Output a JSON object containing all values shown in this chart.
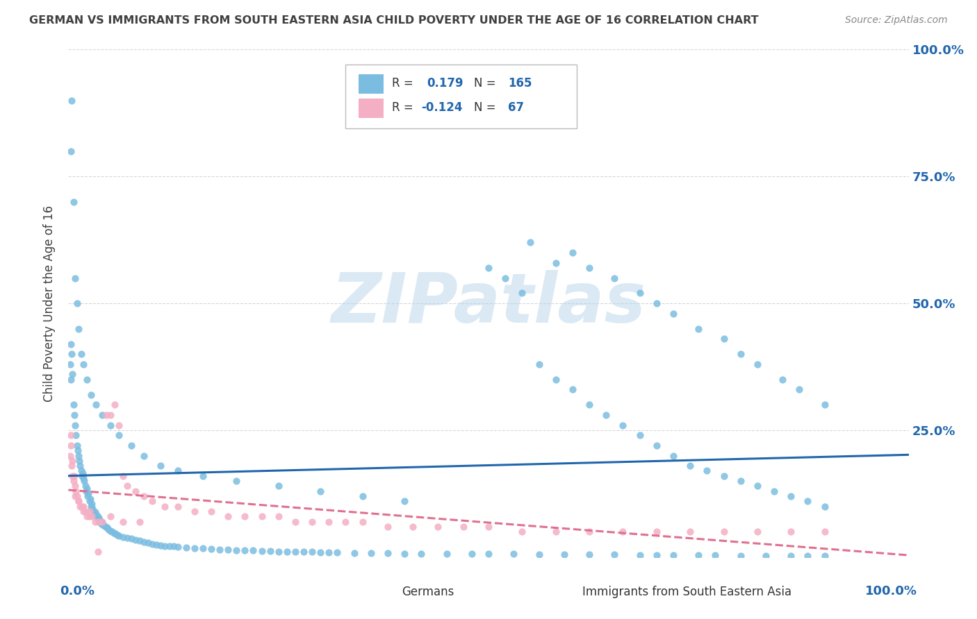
{
  "title": "GERMAN VS IMMIGRANTS FROM SOUTH EASTERN ASIA CHILD POVERTY UNDER THE AGE OF 16 CORRELATION CHART",
  "source": "Source: ZipAtlas.com",
  "ylabel": "Child Poverty Under the Age of 16",
  "blue_color": "#7bbde0",
  "pink_color": "#f4afc4",
  "blue_line_color": "#2166ac",
  "pink_line_color": "#e07090",
  "background_color": "#ffffff",
  "grid_color": "#cccccc",
  "title_color": "#404040",
  "axis_label_color": "#2166ac",
  "blue_scatter_x": [
    0.002,
    0.003,
    0.003,
    0.004,
    0.005,
    0.006,
    0.007,
    0.008,
    0.009,
    0.01,
    0.011,
    0.012,
    0.013,
    0.014,
    0.015,
    0.016,
    0.017,
    0.018,
    0.019,
    0.02,
    0.021,
    0.022,
    0.023,
    0.024,
    0.025,
    0.026,
    0.027,
    0.028,
    0.029,
    0.03,
    0.031,
    0.032,
    0.033,
    0.034,
    0.035,
    0.036,
    0.037,
    0.038,
    0.039,
    0.04,
    0.042,
    0.044,
    0.046,
    0.048,
    0.05,
    0.052,
    0.054,
    0.056,
    0.058,
    0.06,
    0.065,
    0.07,
    0.075,
    0.08,
    0.085,
    0.09,
    0.095,
    0.1,
    0.105,
    0.11,
    0.115,
    0.12,
    0.125,
    0.13,
    0.14,
    0.15,
    0.16,
    0.17,
    0.18,
    0.19,
    0.2,
    0.21,
    0.22,
    0.23,
    0.24,
    0.25,
    0.26,
    0.27,
    0.28,
    0.29,
    0.3,
    0.31,
    0.32,
    0.34,
    0.36,
    0.38,
    0.4,
    0.42,
    0.45,
    0.48,
    0.5,
    0.53,
    0.56,
    0.59,
    0.62,
    0.65,
    0.68,
    0.7,
    0.72,
    0.75,
    0.77,
    0.8,
    0.83,
    0.86,
    0.88,
    0.9,
    0.55,
    0.58,
    0.6,
    0.62,
    0.65,
    0.68,
    0.7,
    0.72,
    0.75,
    0.78,
    0.8,
    0.82,
    0.85,
    0.87,
    0.9,
    0.5,
    0.52,
    0.54,
    0.56,
    0.58,
    0.6,
    0.62,
    0.64,
    0.66,
    0.68,
    0.7,
    0.72,
    0.74,
    0.76,
    0.78,
    0.8,
    0.82,
    0.84,
    0.86,
    0.88,
    0.9,
    0.003,
    0.004,
    0.006,
    0.008,
    0.01,
    0.012,
    0.015,
    0.018,
    0.022,
    0.027,
    0.033,
    0.04,
    0.05,
    0.06,
    0.075,
    0.09,
    0.11,
    0.13,
    0.16,
    0.2,
    0.25,
    0.3,
    0.35,
    0.4
  ],
  "blue_scatter_y": [
    0.38,
    0.42,
    0.35,
    0.4,
    0.36,
    0.3,
    0.28,
    0.26,
    0.24,
    0.22,
    0.21,
    0.2,
    0.19,
    0.18,
    0.17,
    0.16,
    0.165,
    0.155,
    0.15,
    0.14,
    0.13,
    0.135,
    0.12,
    0.125,
    0.11,
    0.115,
    0.1,
    0.105,
    0.095,
    0.09,
    0.085,
    0.088,
    0.08,
    0.082,
    0.075,
    0.078,
    0.07,
    0.072,
    0.065,
    0.068,
    0.062,
    0.06,
    0.058,
    0.055,
    0.052,
    0.05,
    0.048,
    0.046,
    0.044,
    0.042,
    0.04,
    0.038,
    0.036,
    0.034,
    0.032,
    0.03,
    0.028,
    0.026,
    0.025,
    0.023,
    0.022,
    0.022,
    0.021,
    0.02,
    0.019,
    0.018,
    0.017,
    0.016,
    0.015,
    0.015,
    0.014,
    0.013,
    0.013,
    0.012,
    0.012,
    0.011,
    0.011,
    0.01,
    0.01,
    0.01,
    0.009,
    0.009,
    0.009,
    0.008,
    0.008,
    0.008,
    0.007,
    0.007,
    0.007,
    0.006,
    0.006,
    0.006,
    0.005,
    0.005,
    0.005,
    0.005,
    0.004,
    0.004,
    0.004,
    0.004,
    0.004,
    0.003,
    0.003,
    0.003,
    0.003,
    0.003,
    0.62,
    0.58,
    0.6,
    0.57,
    0.55,
    0.52,
    0.5,
    0.48,
    0.45,
    0.43,
    0.4,
    0.38,
    0.35,
    0.33,
    0.3,
    0.57,
    0.55,
    0.52,
    0.38,
    0.35,
    0.33,
    0.3,
    0.28,
    0.26,
    0.24,
    0.22,
    0.2,
    0.18,
    0.17,
    0.16,
    0.15,
    0.14,
    0.13,
    0.12,
    0.11,
    0.1,
    0.8,
    0.9,
    0.7,
    0.55,
    0.5,
    0.45,
    0.4,
    0.38,
    0.35,
    0.32,
    0.3,
    0.28,
    0.26,
    0.24,
    0.22,
    0.2,
    0.18,
    0.17,
    0.16,
    0.15,
    0.14,
    0.13,
    0.12,
    0.11
  ],
  "pink_scatter_x": [
    0.002,
    0.003,
    0.004,
    0.005,
    0.006,
    0.007,
    0.008,
    0.009,
    0.01,
    0.012,
    0.014,
    0.016,
    0.018,
    0.02,
    0.022,
    0.025,
    0.028,
    0.032,
    0.036,
    0.04,
    0.045,
    0.05,
    0.055,
    0.06,
    0.065,
    0.07,
    0.08,
    0.09,
    0.1,
    0.115,
    0.13,
    0.15,
    0.17,
    0.19,
    0.21,
    0.23,
    0.25,
    0.27,
    0.29,
    0.31,
    0.33,
    0.35,
    0.38,
    0.41,
    0.44,
    0.47,
    0.5,
    0.54,
    0.58,
    0.62,
    0.66,
    0.7,
    0.74,
    0.78,
    0.82,
    0.86,
    0.9,
    0.003,
    0.005,
    0.008,
    0.012,
    0.018,
    0.025,
    0.035,
    0.05,
    0.065,
    0.085
  ],
  "pink_scatter_y": [
    0.2,
    0.22,
    0.18,
    0.19,
    0.15,
    0.16,
    0.14,
    0.13,
    0.12,
    0.11,
    0.1,
    0.1,
    0.09,
    0.09,
    0.08,
    0.08,
    0.08,
    0.07,
    0.07,
    0.07,
    0.28,
    0.28,
    0.3,
    0.26,
    0.16,
    0.14,
    0.13,
    0.12,
    0.11,
    0.1,
    0.1,
    0.09,
    0.09,
    0.08,
    0.08,
    0.08,
    0.08,
    0.07,
    0.07,
    0.07,
    0.07,
    0.07,
    0.06,
    0.06,
    0.06,
    0.06,
    0.06,
    0.05,
    0.05,
    0.05,
    0.05,
    0.05,
    0.05,
    0.05,
    0.05,
    0.05,
    0.05,
    0.24,
    0.16,
    0.12,
    0.11,
    0.1,
    0.09,
    0.01,
    0.08,
    0.07,
    0.07
  ]
}
